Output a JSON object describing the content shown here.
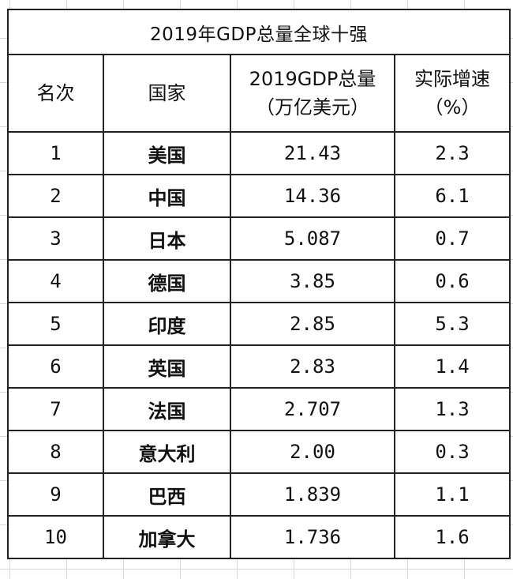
{
  "table": {
    "title": "2019年GDP总量全球十强",
    "headers": {
      "rank": "名次",
      "country": "国家",
      "gdp_line1": "2019GDP总量",
      "gdp_line2": "（万亿美元）",
      "growth_line1": "实际增速",
      "growth_line2": "（%）"
    },
    "rows": [
      {
        "rank": "1",
        "country": "美国",
        "gdp": "21.43",
        "growth": "2.3"
      },
      {
        "rank": "2",
        "country": "中国",
        "gdp": "14.36",
        "growth": "6.1"
      },
      {
        "rank": "3",
        "country": "日本",
        "gdp": "5.087",
        "growth": "0.7"
      },
      {
        "rank": "4",
        "country": "德国",
        "gdp": "3.85",
        "growth": "0.6"
      },
      {
        "rank": "5",
        "country": "印度",
        "gdp": "2.85",
        "growth": "5.3"
      },
      {
        "rank": "6",
        "country": "英国",
        "gdp": "2.83",
        "growth": "1.4"
      },
      {
        "rank": "7",
        "country": "法国",
        "gdp": "2.707",
        "growth": "1.3"
      },
      {
        "rank": "8",
        "country": "意大利",
        "gdp": "2.00",
        "growth": "0.3"
      },
      {
        "rank": "9",
        "country": "巴西",
        "gdp": "1.839",
        "growth": "1.1"
      },
      {
        "rank": "10",
        "country": "加拿大",
        "gdp": "1.736",
        "growth": "1.6"
      }
    ]
  }
}
